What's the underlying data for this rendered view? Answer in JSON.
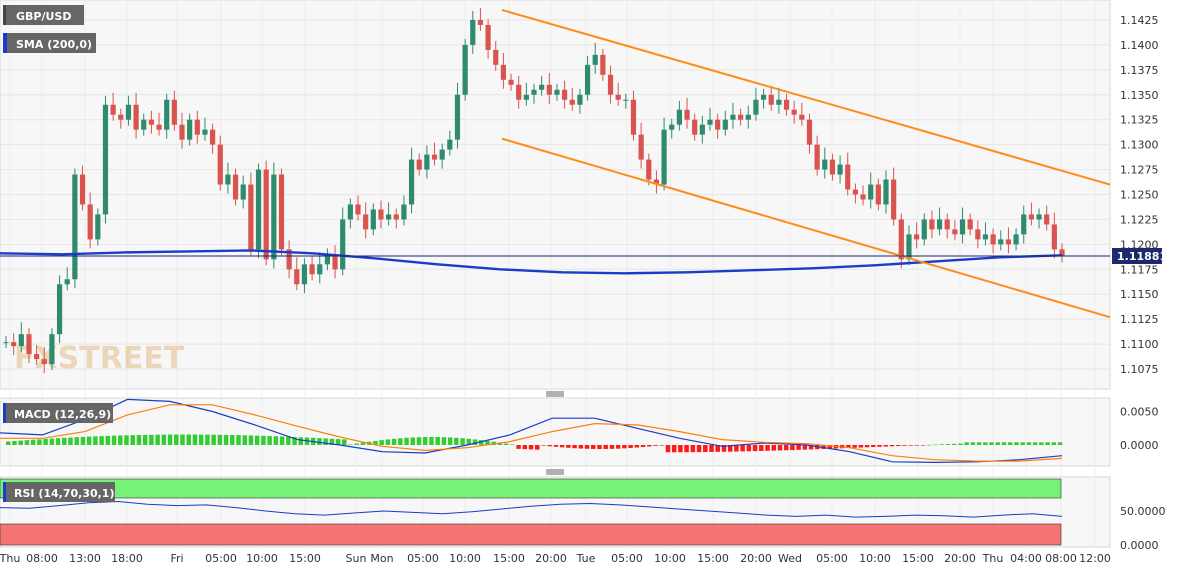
{
  "chart_data": [
    {
      "type": "candlestick",
      "symbol": "GBP/USD",
      "overlay": {
        "name": "SMA (200,0)",
        "color": "#1a3cc8"
      },
      "last_price": "1.11881",
      "watermark": "FXSTREET",
      "ylim": [
        1.1055,
        1.1445
      ],
      "y_ticks": [
        "1.1425",
        "1.1400",
        "1.1375",
        "1.1350",
        "1.1325",
        "1.1300",
        "1.1275",
        "1.1250",
        "1.1225",
        "1.1200",
        "1.1175",
        "1.1150",
        "1.1125",
        "1.1100",
        "1.1075"
      ],
      "colors": {
        "up": "#2e8b6e",
        "down": "#d9534f",
        "channel": "#ff8c1a",
        "sma": "#1a3cc8"
      },
      "upper_channel": [
        [
          1.1435,
          1.126
        ]
      ],
      "lower_channel": [
        [
          1.1306,
          1.1127
        ]
      ],
      "sma_values": [
        1.1191,
        1.119,
        1.1192,
        1.1193,
        1.1194,
        1.1191,
        1.1186,
        1.118,
        1.1175,
        1.1172,
        1.1171,
        1.1172,
        1.1174,
        1.1176,
        1.1179,
        1.1183,
        1.1187,
        1.1189
      ]
    },
    {
      "type": "bar",
      "label": "MACD (12,26,9)",
      "y_ticks": [
        "0.0050",
        "0.0000"
      ],
      "colors": {
        "macd": "#1a3cc8",
        "signal": "#ff7f0e",
        "hist_up": "#33cc33",
        "hist_down": "#ff1a1a"
      }
    },
    {
      "type": "line",
      "label": "RSI (14,70,30,1)",
      "y_ticks": [
        "50.0000",
        "0.0000"
      ],
      "colors": {
        "line": "#1a3cc8",
        "overbought": "#77f277",
        "oversold": "#f47474"
      },
      "values": [
        55,
        54,
        58,
        62,
        64,
        60,
        58,
        59,
        55,
        50,
        46,
        44,
        47,
        50,
        48,
        46,
        49,
        53,
        57,
        60,
        61,
        59,
        56,
        53,
        50,
        47,
        44,
        42,
        44,
        41,
        42,
        44,
        43,
        41,
        44,
        46,
        42
      ]
    }
  ],
  "x_axis": {
    "labels": [
      "Thu",
      "08:00",
      "13:00",
      "18:00",
      "Fri",
      "05:00",
      "10:00",
      "15:00",
      "Sun",
      "Mon",
      "05:00",
      "10:00",
      "15:00",
      "20:00",
      "Tue",
      "05:00",
      "10:00",
      "15:00",
      "20:00",
      "Wed",
      "05:00",
      "10:00",
      "15:00",
      "20:00",
      "Thu",
      "04:00",
      "08:00",
      "12:00"
    ]
  }
}
